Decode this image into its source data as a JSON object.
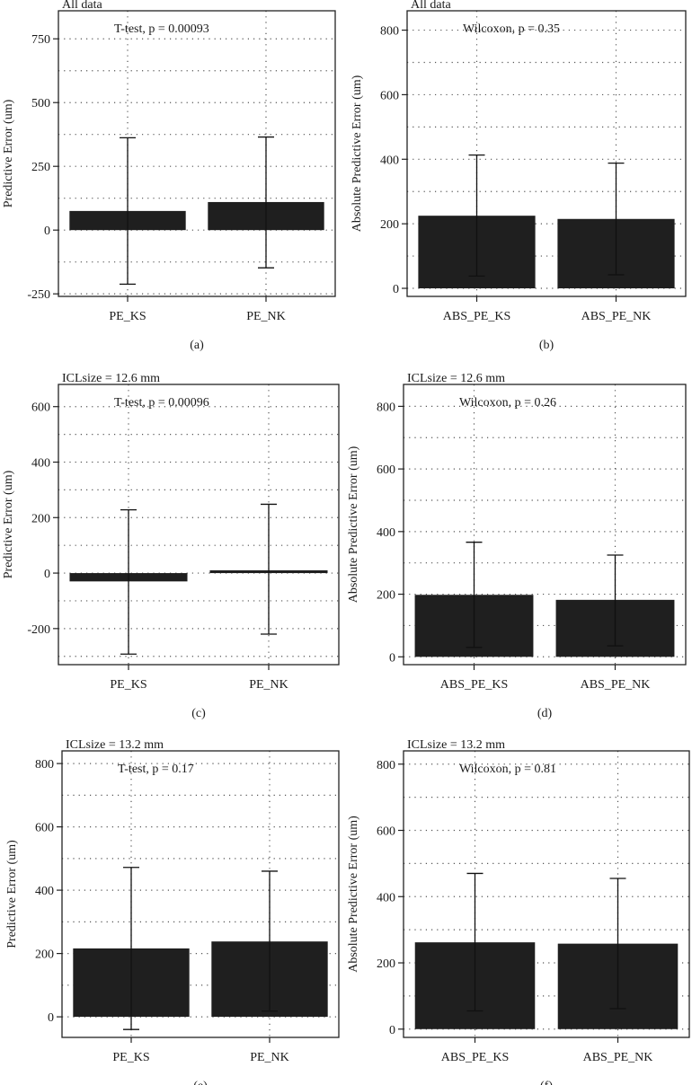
{
  "colors": {
    "bar": "#1f1f1f",
    "frame": "#222222",
    "grid": "#555555",
    "background": "#ffffff"
  },
  "chart_data": [
    {
      "id": "a",
      "type": "bar",
      "panel_label": "(a)",
      "title": "All data",
      "annotation": "T-test, p = 0.00093",
      "xlabel": "",
      "ylabel": "Predictive Error (um)",
      "categories": [
        "PE_KS",
        "PE_NK"
      ],
      "values": [
        75,
        110
      ],
      "error_low": [
        -212,
        -148
      ],
      "error_high": [
        362,
        365
      ],
      "ylim": [
        -260,
        860
      ],
      "yticks": [
        -250,
        0,
        250,
        500,
        750
      ],
      "ytick_labels": [
        "-250",
        "0",
        "250",
        "500",
        "750"
      ],
      "grid": true
    },
    {
      "id": "b",
      "type": "bar",
      "panel_label": "(b)",
      "title": "All data",
      "annotation": "Wilcoxon, p = 0.35",
      "xlabel": "",
      "ylabel": "Absolute Predictive Error (um)",
      "categories": [
        "ABS_PE_KS",
        "ABS_PE_NK"
      ],
      "values": [
        225,
        215
      ],
      "error_low": [
        38,
        42
      ],
      "error_high": [
        413,
        388
      ],
      "ylim": [
        -25,
        860
      ],
      "yticks": [
        0,
        200,
        400,
        600,
        800
      ],
      "ytick_labels": [
        "0",
        "200",
        "400",
        "600",
        "800"
      ],
      "grid": true
    },
    {
      "id": "c",
      "type": "bar",
      "panel_label": "(c)",
      "title": "ICLsize = 12.6 mm",
      "annotation": "T-test, p = 0.00096",
      "xlabel": "",
      "ylabel": "Predictive Error (um)",
      "categories": [
        "PE_KS",
        "PE_NK"
      ],
      "values": [
        -30,
        10
      ],
      "error_low": [
        -292,
        -220
      ],
      "error_high": [
        228,
        248
      ],
      "ylim": [
        -330,
        680
      ],
      "yticks": [
        -200,
        0,
        200,
        400,
        600
      ],
      "ytick_labels": [
        "-200",
        "0",
        "200",
        "400",
        "600"
      ],
      "grid": true
    },
    {
      "id": "d",
      "type": "bar",
      "panel_label": "(d)",
      "title": "ICLsize = 12.6 mm",
      "annotation": "Wilcoxon, p = 0.26",
      "xlabel": "",
      "ylabel": "Absolute Predictive Error (um)",
      "categories": [
        "ABS_PE_KS",
        "ABS_PE_NK"
      ],
      "values": [
        198,
        182
      ],
      "error_low": [
        30,
        35
      ],
      "error_high": [
        366,
        325
      ],
      "ylim": [
        -25,
        870
      ],
      "yticks": [
        0,
        200,
        400,
        600,
        800
      ],
      "ytick_labels": [
        "0",
        "200",
        "400",
        "600",
        "800"
      ],
      "grid": true
    },
    {
      "id": "e",
      "type": "bar",
      "panel_label": "(e)",
      "title": "ICLsize = 13.2 mm",
      "annotation": "T-test, p = 0.17",
      "xlabel": "",
      "ylabel": "Predictive Error (um)",
      "categories": [
        "PE_KS",
        "PE_NK"
      ],
      "values": [
        216,
        238
      ],
      "error_low": [
        -40,
        18
      ],
      "error_high": [
        472,
        460
      ],
      "ylim": [
        -65,
        840
      ],
      "yticks": [
        0,
        200,
        400,
        600,
        800
      ],
      "ytick_labels": [
        "0",
        "200",
        "400",
        "600",
        "800"
      ],
      "grid": true
    },
    {
      "id": "f",
      "type": "bar",
      "panel_label": "(f)",
      "title": "ICLsize = 13.2 mm",
      "annotation": "Wilcoxon, p = 0.81",
      "xlabel": "",
      "ylabel": "Absolute Predictive Error (um)",
      "categories": [
        "ABS_PE_KS",
        "ABS_PE_NK"
      ],
      "values": [
        262,
        258
      ],
      "error_low": [
        55,
        62
      ],
      "error_high": [
        470,
        455
      ],
      "ylim": [
        -25,
        840
      ],
      "yticks": [
        0,
        200,
        400,
        600,
        800
      ],
      "ytick_labels": [
        "0",
        "200",
        "400",
        "600",
        "800"
      ],
      "grid": true
    }
  ]
}
